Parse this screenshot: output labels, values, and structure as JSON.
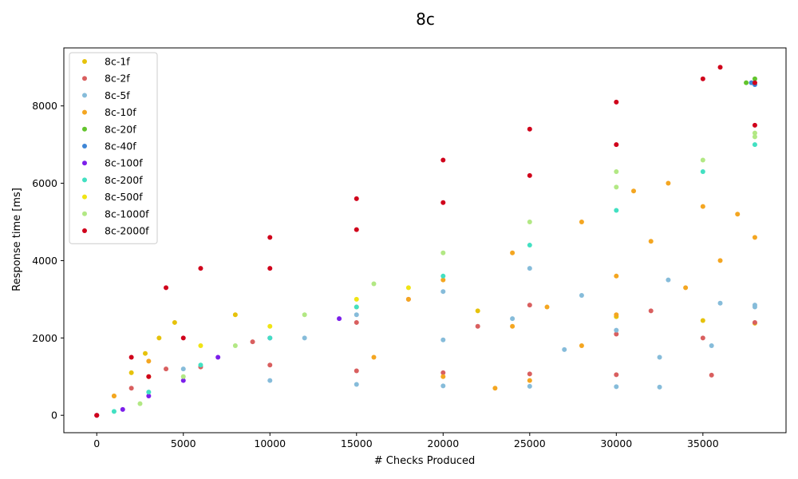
{
  "chart_data": {
    "type": "scatter",
    "title": "8c",
    "xlabel": "# Checks Produced",
    "ylabel": "Response time [ms]",
    "xlim": [
      -1900,
      39800
    ],
    "ylim": [
      -450,
      9500
    ],
    "xticks": [
      0,
      5000,
      10000,
      15000,
      20000,
      25000,
      30000,
      35000
    ],
    "yticks": [
      0,
      2000,
      4000,
      6000,
      8000
    ],
    "grid": false,
    "legend_position": "top-left",
    "series": [
      {
        "name": "8c-1f",
        "color": "#e6c20b",
        "points": [
          [
            0,
            0
          ],
          [
            1000,
            500
          ],
          [
            2000,
            1100
          ],
          [
            2800,
            1600
          ],
          [
            3600,
            2000
          ],
          [
            4500,
            2400
          ],
          [
            8000,
            2600
          ],
          [
            15000,
            2800
          ],
          [
            22000,
            2700
          ],
          [
            30000,
            2550
          ],
          [
            35000,
            2450
          ],
          [
            38000,
            2380
          ]
        ]
      },
      {
        "name": "8c-2f",
        "color": "#d95f5f",
        "points": [
          [
            0,
            0
          ],
          [
            2000,
            700
          ],
          [
            4000,
            1200
          ],
          [
            6000,
            1250
          ],
          [
            10000,
            1300
          ],
          [
            15000,
            1150
          ],
          [
            20000,
            1100
          ],
          [
            25000,
            1070
          ],
          [
            30000,
            1050
          ],
          [
            35500,
            1040
          ],
          [
            9000,
            1900
          ],
          [
            15000,
            2400
          ],
          [
            22000,
            2300
          ],
          [
            30000,
            2100
          ],
          [
            35000,
            2000
          ],
          [
            18000,
            3000
          ],
          [
            25000,
            2850
          ],
          [
            32000,
            2700
          ],
          [
            38000,
            2400
          ]
        ]
      },
      {
        "name": "8c-5f",
        "color": "#86bcda",
        "points": [
          [
            5000,
            1200
          ],
          [
            10000,
            900
          ],
          [
            15000,
            800
          ],
          [
            20000,
            760
          ],
          [
            25000,
            750
          ],
          [
            30000,
            740
          ],
          [
            32500,
            730
          ],
          [
            12000,
            2000
          ],
          [
            20000,
            1950
          ],
          [
            27000,
            1700
          ],
          [
            32500,
            1500
          ],
          [
            15000,
            2600
          ],
          [
            24000,
            2500
          ],
          [
            30000,
            2200
          ],
          [
            35500,
            1800
          ],
          [
            20000,
            3200
          ],
          [
            28000,
            3100
          ],
          [
            36000,
            2900
          ],
          [
            38000,
            2800
          ],
          [
            25000,
            3800
          ],
          [
            33000,
            3500
          ],
          [
            38000,
            2850
          ]
        ]
      },
      {
        "name": "8c-10f",
        "color": "#f4a621",
        "points": [
          [
            1000,
            500
          ],
          [
            3000,
            1400
          ],
          [
            16000,
            1500
          ],
          [
            20000,
            1000
          ],
          [
            23000,
            700
          ],
          [
            25000,
            900
          ],
          [
            18000,
            3000
          ],
          [
            24000,
            2300
          ],
          [
            28000,
            1800
          ],
          [
            20000,
            3500
          ],
          [
            26000,
            2800
          ],
          [
            30000,
            2600
          ],
          [
            24000,
            4200
          ],
          [
            30000,
            3600
          ],
          [
            34000,
            3300
          ],
          [
            28000,
            5000
          ],
          [
            32000,
            4500
          ],
          [
            36000,
            4000
          ],
          [
            31000,
            5800
          ],
          [
            35000,
            5400
          ],
          [
            38000,
            4600
          ],
          [
            33000,
            6000
          ],
          [
            37000,
            5200
          ]
        ]
      },
      {
        "name": "8c-20f",
        "color": "#62c42c",
        "points": [
          [
            37500,
            8600
          ],
          [
            38000,
            8700
          ]
        ]
      },
      {
        "name": "8c-40f",
        "color": "#3e86d6",
        "points": [
          [
            37800,
            8600
          ],
          [
            38000,
            8550
          ]
        ]
      },
      {
        "name": "8c-100f",
        "color": "#7c1fea",
        "points": [
          [
            0,
            0
          ],
          [
            1500,
            150
          ],
          [
            3000,
            500
          ],
          [
            5000,
            900
          ],
          [
            7000,
            1500
          ],
          [
            10000,
            2000
          ],
          [
            14000,
            2500
          ]
        ]
      },
      {
        "name": "8c-200f",
        "color": "#42e0c2",
        "points": [
          [
            1000,
            100
          ],
          [
            3000,
            600
          ],
          [
            6000,
            1300
          ],
          [
            10000,
            2000
          ],
          [
            15000,
            2800
          ],
          [
            20000,
            3600
          ],
          [
            25000,
            4400
          ],
          [
            30000,
            5300
          ],
          [
            35000,
            6300
          ],
          [
            38000,
            7000
          ]
        ]
      },
      {
        "name": "8c-500f",
        "color": "#f0e414",
        "points": [
          [
            3000,
            1000
          ],
          [
            6000,
            1800
          ],
          [
            10000,
            2300
          ],
          [
            15000,
            3000
          ],
          [
            18000,
            3300
          ]
        ]
      },
      {
        "name": "8c-1000f",
        "color": "#b2e884",
        "points": [
          [
            2500,
            300
          ],
          [
            5000,
            1000
          ],
          [
            8000,
            1800
          ],
          [
            12000,
            2600
          ],
          [
            16000,
            3400
          ],
          [
            20000,
            4200
          ],
          [
            25000,
            5000
          ],
          [
            30000,
            5900
          ],
          [
            35000,
            6600
          ],
          [
            38000,
            7200
          ],
          [
            30000,
            6300
          ],
          [
            38000,
            7300
          ]
        ]
      },
      {
        "name": "8c-2000f",
        "color": "#d0011b",
        "points": [
          [
            0,
            0
          ],
          [
            2000,
            1500
          ],
          [
            4000,
            3300
          ],
          [
            6000,
            3800
          ],
          [
            10000,
            4600
          ],
          [
            15000,
            5600
          ],
          [
            20000,
            6600
          ],
          [
            25000,
            7400
          ],
          [
            30000,
            8100
          ],
          [
            35000,
            8700
          ],
          [
            36000,
            9000
          ],
          [
            38000,
            8600
          ],
          [
            38000,
            7500
          ],
          [
            30000,
            7000
          ],
          [
            25000,
            6200
          ],
          [
            20000,
            5500
          ],
          [
            15000,
            4800
          ],
          [
            10000,
            3800
          ],
          [
            5000,
            2000
          ],
          [
            3000,
            1000
          ]
        ]
      }
    ]
  }
}
